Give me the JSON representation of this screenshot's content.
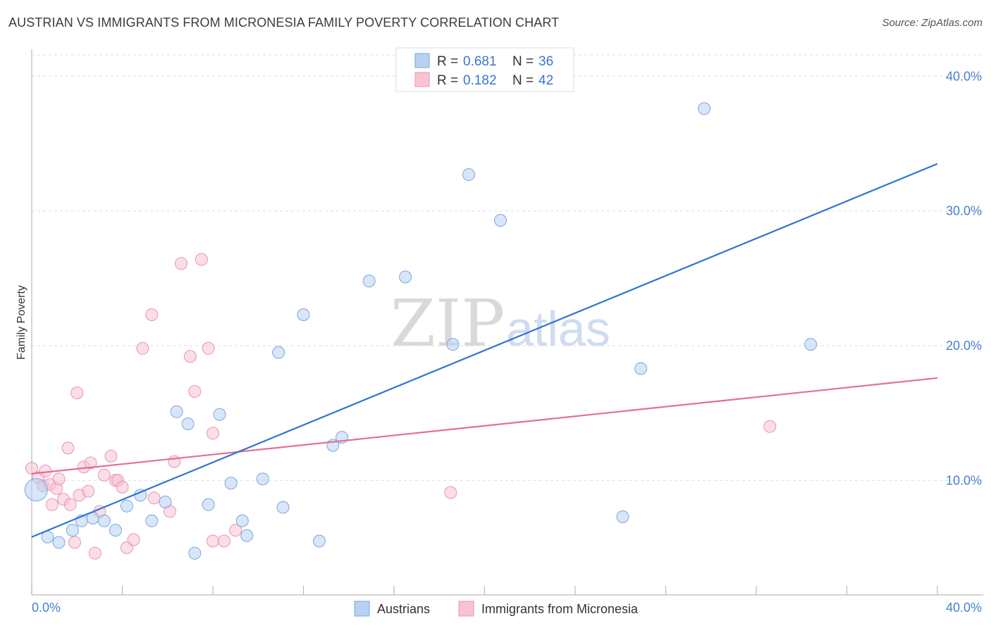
{
  "header": {
    "title": "AUSTRIAN VS IMMIGRANTS FROM MICRONESIA FAMILY POVERTY CORRELATION CHART",
    "source": "Source: ZipAtlas.com"
  },
  "watermark": {
    "zip": "ZIP",
    "atlas": "atlas"
  },
  "legend": {
    "rows": [
      {
        "r_label": "R =",
        "r_value": "0.681",
        "n_label": "N =",
        "n_value": "36"
      },
      {
        "r_label": "R =",
        "r_value": "0.182",
        "n_label": "N =",
        "n_value": "42"
      }
    ]
  },
  "bottom_legend": {
    "a": "Austrians",
    "b": "Immigrants from Micronesia"
  },
  "colors": {
    "blue_fill": "#b7d1f3",
    "blue_stroke": "#7ea6dc",
    "blue_line": "#2f74d0",
    "pink_fill": "#f8c3d3",
    "pink_stroke": "#ea94b0",
    "pink_line": "#e46f96",
    "grid": "#dddddd",
    "axis": "#bbbbbb",
    "tick_text": "#4a7fd0"
  },
  "chart_data": {
    "type": "scatter",
    "title": "AUSTRIAN VS IMMIGRANTS FROM MICRONESIA FAMILY POVERTY CORRELATION CHART",
    "xlabel": "",
    "ylabel": "Family Poverty",
    "xlim": [
      0,
      40
    ],
    "ylim": [
      1.5,
      42
    ],
    "x_tick_labels": [
      "0.0%",
      "40.0%"
    ],
    "y_ticks": [
      10,
      20,
      30,
      40
    ],
    "y_tick_labels": [
      "10.0%",
      "20.0%",
      "30.0%",
      "40.0%"
    ],
    "grid": true,
    "legend_position": "top-center",
    "series": [
      {
        "name": "Austrians",
        "color": "#b7d1f3",
        "r": 0.681,
        "n": 36,
        "trend": {
          "x": [
            0,
            40
          ],
          "y": [
            5.8,
            33.5
          ]
        },
        "points": [
          [
            0.2,
            9.3
          ],
          [
            0.7,
            5.8
          ],
          [
            1.2,
            5.4
          ],
          [
            1.8,
            6.3
          ],
          [
            2.2,
            7.0
          ],
          [
            2.7,
            7.2
          ],
          [
            3.2,
            7.0
          ],
          [
            3.7,
            6.3
          ],
          [
            4.2,
            8.1
          ],
          [
            4.8,
            8.9
          ],
          [
            5.3,
            7.0
          ],
          [
            5.9,
            8.4
          ],
          [
            6.4,
            15.1
          ],
          [
            6.9,
            14.2
          ],
          [
            7.2,
            4.6
          ],
          [
            7.8,
            8.2
          ],
          [
            8.3,
            14.9
          ],
          [
            8.8,
            9.8
          ],
          [
            9.3,
            7.0
          ],
          [
            9.5,
            5.9
          ],
          [
            10.2,
            10.1
          ],
          [
            10.9,
            19.5
          ],
          [
            11.1,
            8.0
          ],
          [
            12.0,
            22.3
          ],
          [
            12.7,
            5.5
          ],
          [
            13.3,
            12.6
          ],
          [
            13.7,
            13.2
          ],
          [
            14.9,
            24.8
          ],
          [
            16.5,
            25.1
          ],
          [
            18.6,
            20.1
          ],
          [
            19.3,
            32.7
          ],
          [
            20.7,
            29.3
          ],
          [
            26.1,
            7.3
          ],
          [
            26.9,
            18.3
          ],
          [
            29.7,
            37.6
          ],
          [
            34.4,
            20.1
          ]
        ]
      },
      {
        "name": "Immigrants from Micronesia",
        "color": "#f8c3d3",
        "r": 0.182,
        "n": 42,
        "trend": {
          "x": [
            0,
            40
          ],
          "y": [
            10.5,
            17.6
          ]
        },
        "points": [
          [
            0.0,
            10.9
          ],
          [
            0.3,
            10.2
          ],
          [
            0.5,
            9.6
          ],
          [
            0.6,
            10.7
          ],
          [
            0.8,
            9.7
          ],
          [
            0.9,
            8.2
          ],
          [
            1.1,
            9.4
          ],
          [
            1.2,
            10.1
          ],
          [
            1.4,
            8.6
          ],
          [
            1.6,
            12.4
          ],
          [
            1.7,
            8.2
          ],
          [
            1.9,
            5.4
          ],
          [
            2.0,
            16.5
          ],
          [
            2.1,
            8.9
          ],
          [
            2.3,
            11.0
          ],
          [
            2.5,
            9.2
          ],
          [
            2.6,
            11.3
          ],
          [
            2.8,
            4.6
          ],
          [
            3.0,
            7.7
          ],
          [
            3.2,
            10.4
          ],
          [
            3.5,
            11.8
          ],
          [
            3.7,
            10.0
          ],
          [
            3.8,
            10.0
          ],
          [
            4.0,
            9.5
          ],
          [
            4.2,
            5.0
          ],
          [
            4.5,
            5.6
          ],
          [
            4.9,
            19.8
          ],
          [
            5.3,
            22.3
          ],
          [
            5.4,
            8.7
          ],
          [
            6.1,
            7.7
          ],
          [
            6.3,
            11.4
          ],
          [
            6.6,
            26.1
          ],
          [
            7.0,
            19.2
          ],
          [
            7.2,
            16.6
          ],
          [
            7.5,
            26.4
          ],
          [
            7.8,
            19.8
          ],
          [
            8.0,
            13.5
          ],
          [
            8.0,
            5.5
          ],
          [
            8.5,
            5.5
          ],
          [
            9.0,
            6.3
          ],
          [
            18.5,
            9.1
          ],
          [
            32.6,
            14.0
          ]
        ]
      }
    ]
  }
}
